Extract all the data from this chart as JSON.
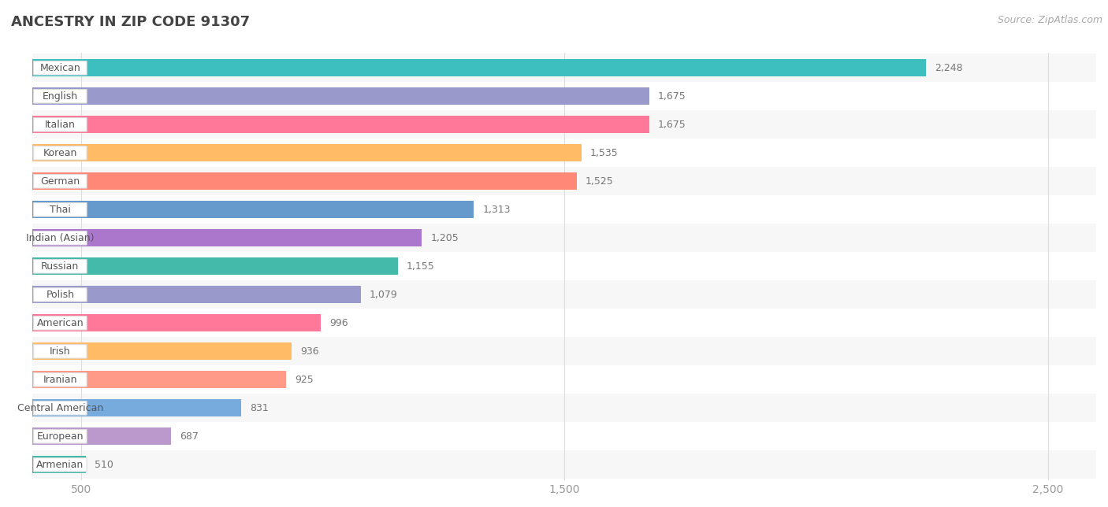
{
  "title": "ANCESTRY IN ZIP CODE 91307",
  "source": "Source: ZipAtlas.com",
  "categories": [
    "Mexican",
    "English",
    "Italian",
    "Korean",
    "German",
    "Thai",
    "Indian (Asian)",
    "Russian",
    "Polish",
    "American",
    "Irish",
    "Iranian",
    "Central American",
    "European",
    "Armenian"
  ],
  "values": [
    2248,
    1675,
    1675,
    1535,
    1525,
    1313,
    1205,
    1155,
    1079,
    996,
    936,
    925,
    831,
    687,
    510
  ],
  "colors": [
    "#3dbfbf",
    "#9999cc",
    "#ff7799",
    "#ffbb66",
    "#ff8877",
    "#6699cc",
    "#aa77cc",
    "#44bbaa",
    "#9999cc",
    "#ff7799",
    "#ffbb66",
    "#ff9988",
    "#77aadd",
    "#bb99cc",
    "#44bbaa"
  ],
  "xlim": [
    400,
    2600
  ],
  "xticks": [
    500,
    1500,
    2500
  ],
  "xtick_labels": [
    "500",
    "1,500",
    "2,500"
  ],
  "background_color": "#ffffff",
  "row_color_even": "#f7f7f7",
  "row_color_odd": "#ffffff",
  "label_color": "#555555",
  "value_color": "#777777",
  "title_color": "#444444",
  "bar_height": 0.62
}
